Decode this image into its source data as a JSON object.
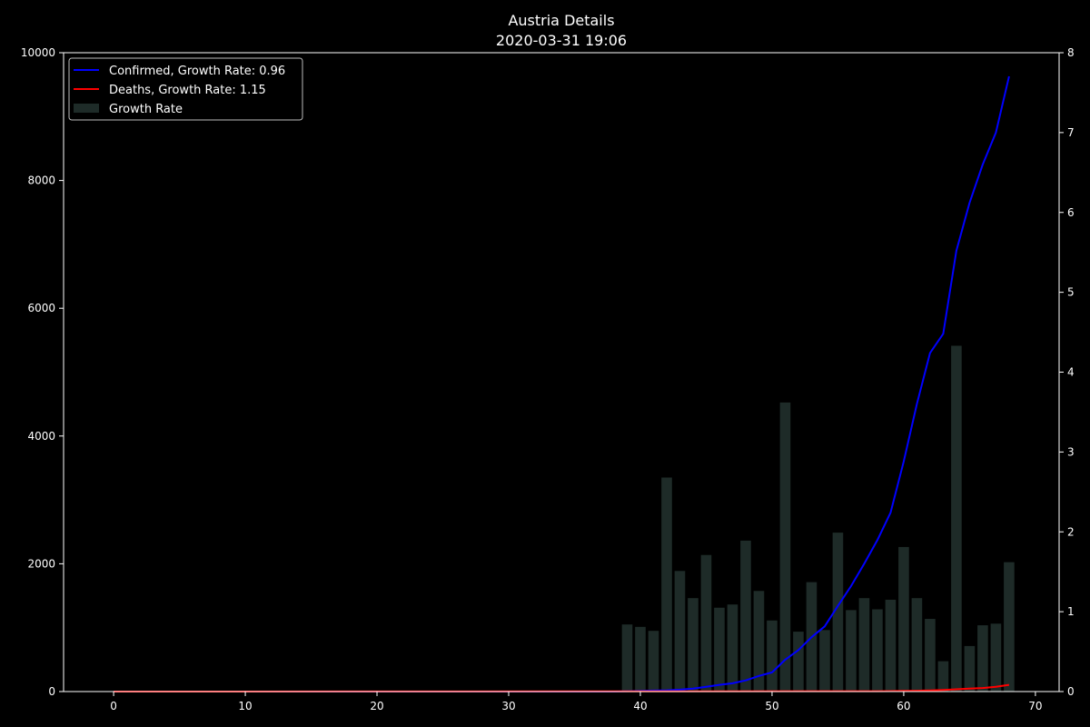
{
  "chart_data": {
    "type": "bar+line",
    "title": "Austria Details",
    "subtitle": "2020-03-31 19:06",
    "xlabel": "",
    "ylabel": "",
    "xlim": [
      -3.8,
      71.8
    ],
    "ylim_left": [
      0,
      10000
    ],
    "ylim_right": [
      0,
      8
    ],
    "x_ticks": [
      0,
      10,
      20,
      30,
      40,
      50,
      60,
      70
    ],
    "y_left_ticks": [
      0,
      2000,
      4000,
      6000,
      8000,
      10000
    ],
    "y_right_ticks": [
      0,
      1,
      2,
      3,
      4,
      5,
      6,
      7,
      8
    ],
    "grid": false,
    "legend_position": "top-left",
    "colors": {
      "background": "#000000",
      "confirmed": "#0000ff",
      "deaths": "#ff0000",
      "growth_rate": "#1e2b28"
    },
    "series": [
      {
        "name": "Confirmed, Growth Rate: 0.96",
        "kind": "line",
        "axis": "left",
        "x": [
          0,
          38,
          39,
          40,
          41,
          42,
          43,
          44,
          45,
          46,
          47,
          48,
          49,
          50,
          51,
          52,
          53,
          54,
          55,
          56,
          57,
          58,
          59,
          60,
          61,
          62,
          63,
          64,
          65,
          66,
          67,
          68
        ],
        "values": [
          0,
          0,
          5,
          10,
          15,
          20,
          30,
          45,
          75,
          105,
          130,
          175,
          245,
          300,
          500,
          650,
          850,
          1020,
          1340,
          1650,
          2000,
          2370,
          2800,
          3600,
          4500,
          5300,
          5600,
          6900,
          7650,
          8250,
          8750,
          9630
        ]
      },
      {
        "name": "Deaths, Growth Rate: 1.15",
        "kind": "line",
        "axis": "left",
        "x": [
          0,
          58,
          59,
          60,
          61,
          62,
          63,
          64,
          65,
          66,
          67,
          68
        ],
        "values": [
          0,
          5,
          7,
          10,
          13,
          18,
          25,
          35,
          45,
          55,
          75,
          105
        ]
      },
      {
        "name": "Growth Rate",
        "kind": "bar",
        "axis": "right",
        "x": [
          39,
          40,
          41,
          42,
          43,
          44,
          45,
          46,
          47,
          48,
          49,
          50,
          51,
          52,
          53,
          54,
          55,
          56,
          57,
          58,
          59,
          60,
          61,
          62,
          63,
          64,
          65,
          66,
          67,
          68
        ],
        "values": [
          0.84,
          0.81,
          0.76,
          2.68,
          1.51,
          1.17,
          1.71,
          1.05,
          1.09,
          1.89,
          1.26,
          0.89,
          3.62,
          0.75,
          1.37,
          0.77,
          1.99,
          1.02,
          1.17,
          1.03,
          1.15,
          1.81,
          1.17,
          0.91,
          0.38,
          4.33,
          0.57,
          0.83,
          0.85,
          1.62
        ]
      }
    ]
  }
}
